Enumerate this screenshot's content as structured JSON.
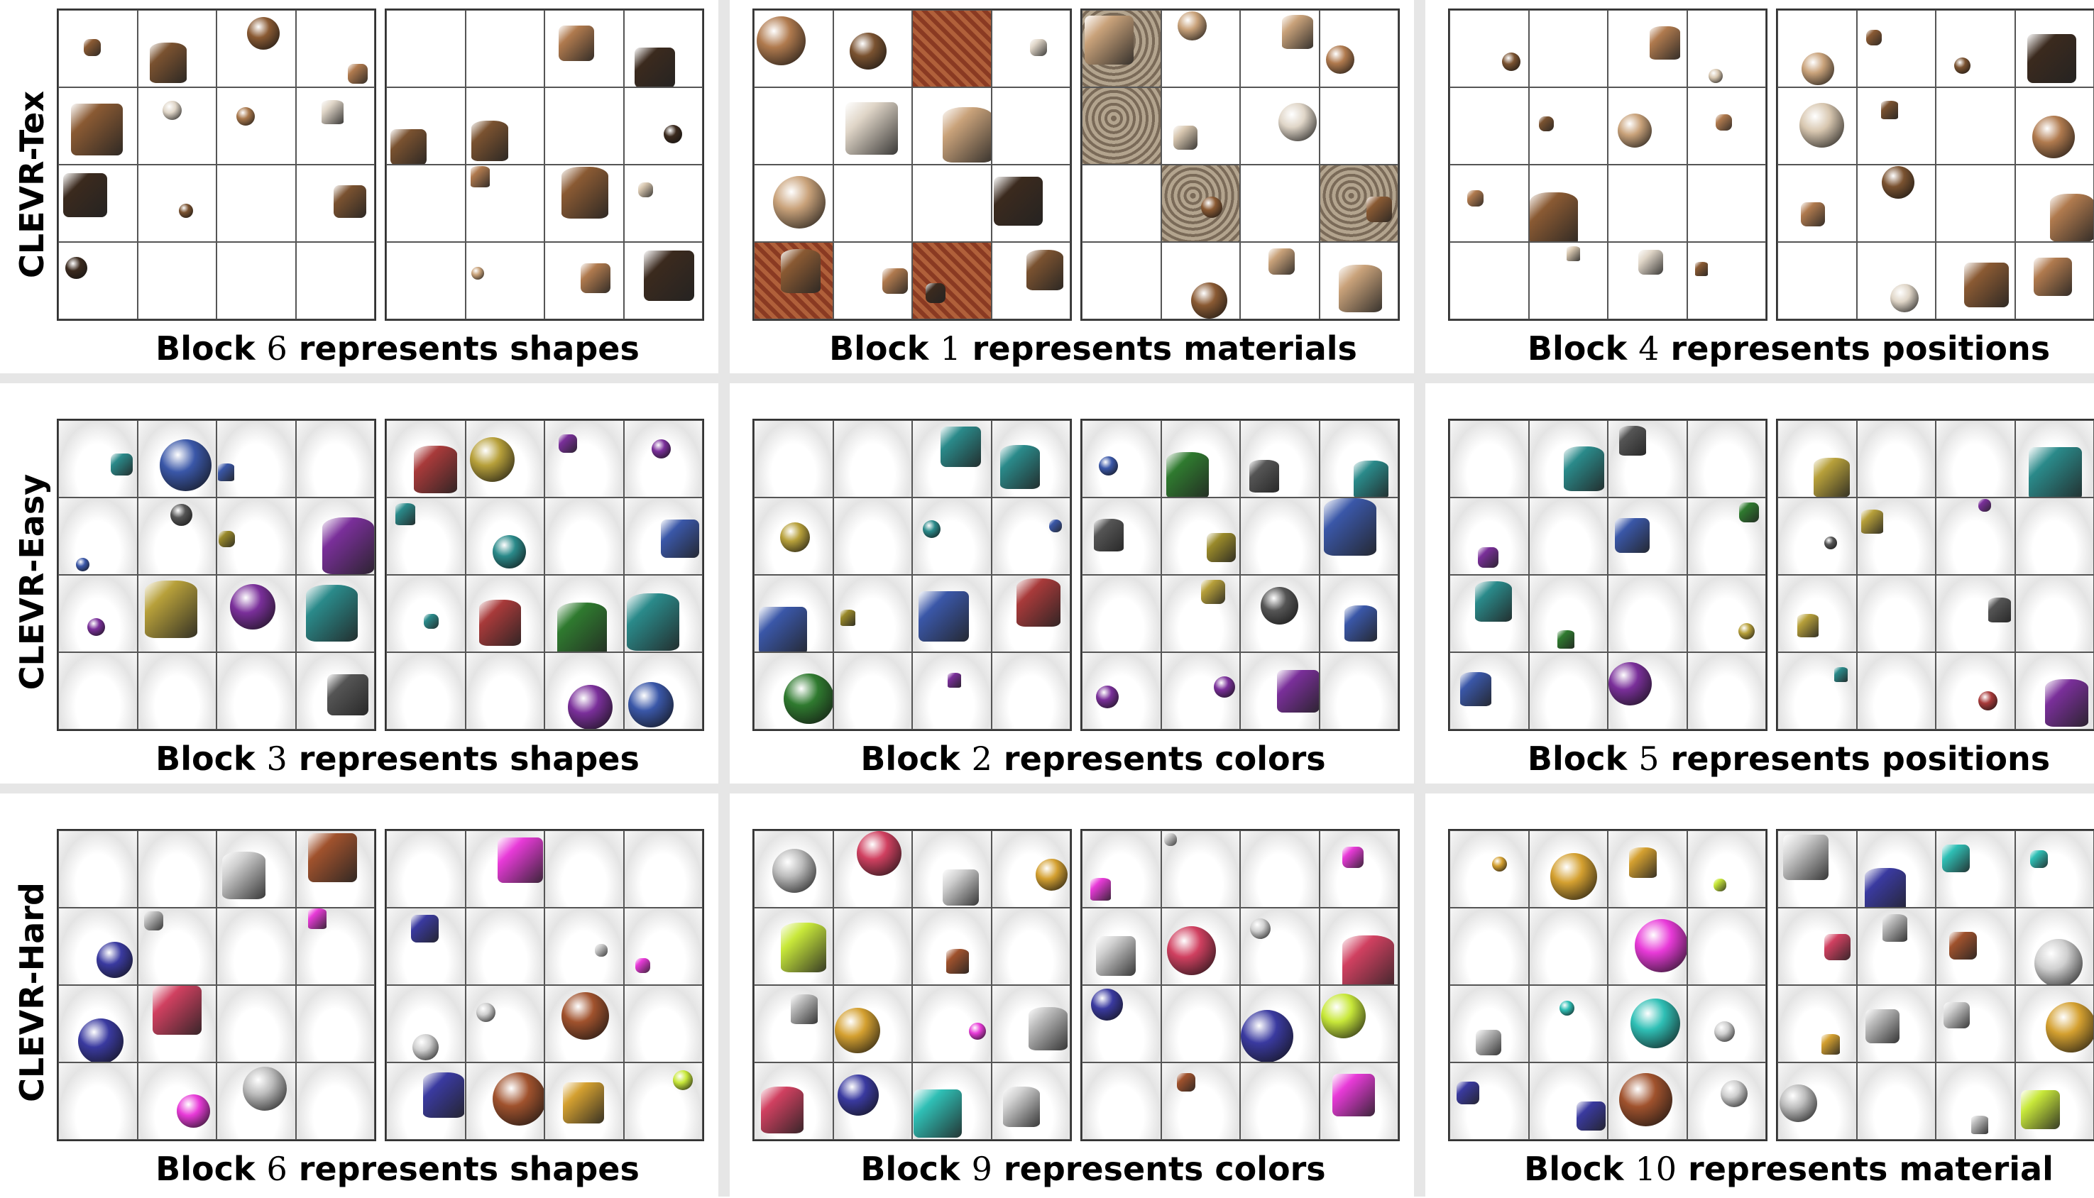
{
  "row_labels": [
    "CLEVR-Tex",
    "CLEVR-Easy",
    "CLEVR-Hard"
  ],
  "captions": [
    {
      "pre": "Block",
      "num": "6",
      "post": "represents shapes"
    },
    {
      "pre": "Block",
      "num": "1",
      "post": "represents materials"
    },
    {
      "pre": "Block",
      "num": "4",
      "post": "represents positions"
    },
    {
      "pre": "Block",
      "num": "3",
      "post": "represents shapes"
    },
    {
      "pre": "Block",
      "num": "2",
      "post": "represents colors"
    },
    {
      "pre": "Block",
      "num": "5",
      "post": "represents positions"
    },
    {
      "pre": "Block",
      "num": "6",
      "post": "represents shapes"
    },
    {
      "pre": "Block",
      "num": "9",
      "post": "represents colors"
    },
    {
      "pre": "Block",
      "num": "10",
      "post": "represents material"
    }
  ],
  "palettes": {
    "tex": [
      "#b07a4e",
      "#8a5a33",
      "#d8c7b0",
      "#7a5230",
      "#c9a27a",
      "#3b2a1e",
      "#a9784c",
      "#e0d6c8"
    ],
    "easy": [
      "#2a8a8a",
      "#3a57a8",
      "#7a2f9a",
      "#9a8a2a",
      "#555555",
      "#2f7a2f",
      "#a83a3a",
      "#b7a03a"
    ],
    "hard": [
      "#c8e83a",
      "#cfcfcf",
      "#e83ad8",
      "#2fbfb5",
      "#a0522d",
      "#bcbcbc",
      "#d4a030",
      "#3a3aa0",
      "#d04060"
    ]
  }
}
